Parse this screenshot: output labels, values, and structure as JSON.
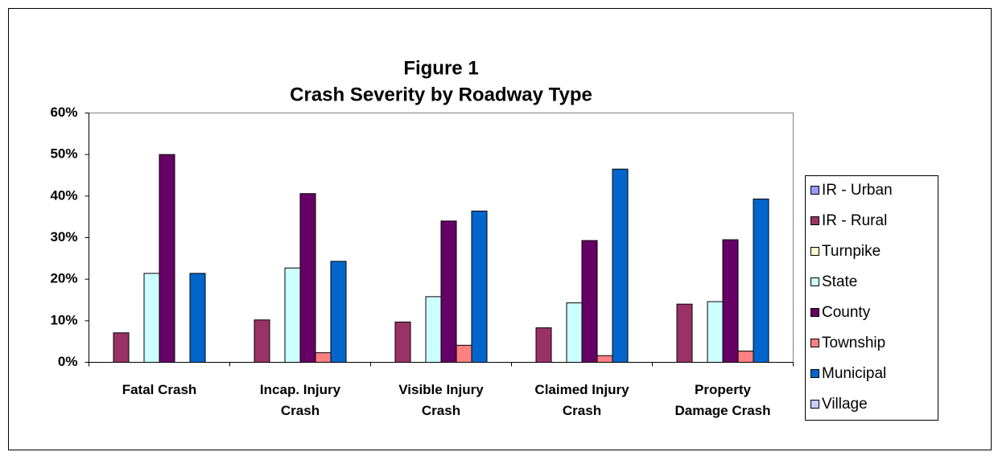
{
  "chart_data": {
    "type": "bar",
    "title": "Figure 1",
    "subtitle": "Crash Severity by Roadway Type",
    "categories": [
      "Fatal Crash",
      "Incap. Injury Crash",
      "Visible Injury Crash",
      "Claimed Injury Crash",
      "Property Damage Crash"
    ],
    "series": [
      {
        "name": "IR - Urban",
        "color": "#9999ff",
        "values": [
          0,
          0,
          0,
          0,
          0
        ]
      },
      {
        "name": "IR - Rural",
        "color": "#993366",
        "values": [
          7.1,
          10.2,
          9.7,
          8.3,
          14.0
        ]
      },
      {
        "name": "Turnpike",
        "color": "#ffffcc",
        "values": [
          0,
          0,
          0,
          0,
          0
        ]
      },
      {
        "name": "State",
        "color": "#ccffff",
        "values": [
          21.4,
          22.7,
          15.8,
          14.3,
          14.6
        ]
      },
      {
        "name": "County",
        "color": "#660066",
        "values": [
          50.0,
          40.6,
          34.0,
          29.3,
          29.5
        ]
      },
      {
        "name": "Township",
        "color": "#ff8080",
        "values": [
          0,
          2.3,
          4.1,
          1.6,
          2.7
        ]
      },
      {
        "name": "Municipal",
        "color": "#0066cc",
        "values": [
          21.4,
          24.3,
          36.4,
          46.5,
          39.3
        ]
      },
      {
        "name": "Village",
        "color": "#ccccff",
        "values": [
          0,
          0,
          0,
          0,
          0
        ]
      }
    ],
    "ylim": [
      0,
      60
    ],
    "yticks": [
      {
        "value": 0,
        "label": "0%"
      },
      {
        "value": 10,
        "label": "10%"
      },
      {
        "value": 20,
        "label": "20%"
      },
      {
        "value": 30,
        "label": "30%"
      },
      {
        "value": 40,
        "label": "40%"
      },
      {
        "value": 50,
        "label": "50%"
      },
      {
        "value": 60,
        "label": "60%"
      }
    ],
    "legend": "right"
  }
}
